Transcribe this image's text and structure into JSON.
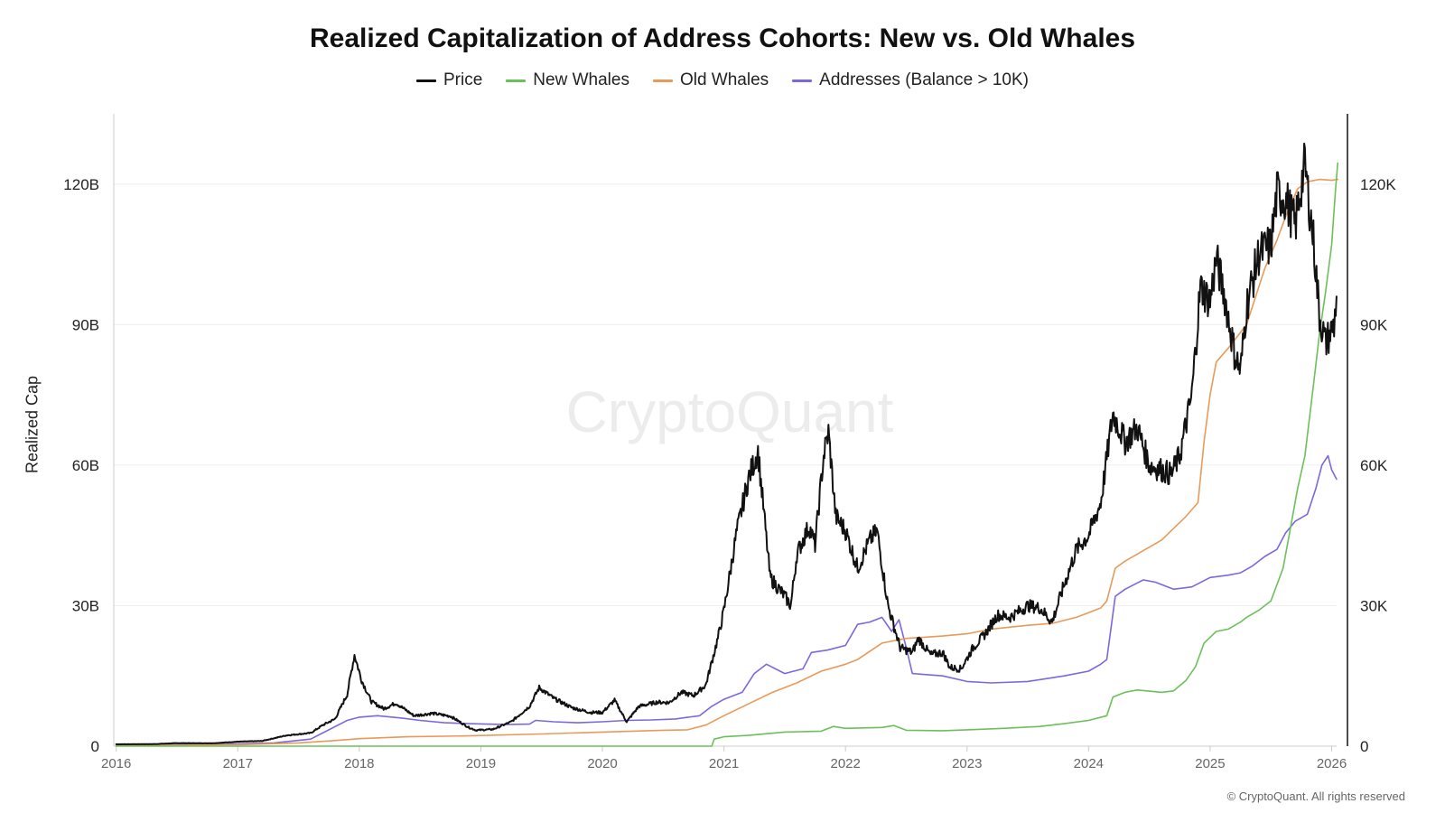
{
  "chart_data": {
    "type": "line",
    "title": "Realized Capitalization of Address Cohorts: New vs. Old Whales",
    "ylabel": "Realized Cap",
    "y2label": "",
    "watermark": "CryptoQuant",
    "copyright": "© CryptoQuant. All rights reserved",
    "ylim": [
      0,
      135
    ],
    "y2lim": [
      0,
      135000
    ],
    "y_ticks": [
      {
        "value": 0,
        "label": "0"
      },
      {
        "value": 30,
        "label": "30B"
      },
      {
        "value": 60,
        "label": "60B"
      },
      {
        "value": 90,
        "label": "90B"
      },
      {
        "value": 120,
        "label": "120B"
      }
    ],
    "y2_ticks": [
      {
        "value": 0,
        "label": "0"
      },
      {
        "value": 30000,
        "label": "30K"
      },
      {
        "value": 60000,
        "label": "60K"
      },
      {
        "value": 90000,
        "label": "90K"
      },
      {
        "value": 120000,
        "label": "120K"
      }
    ],
    "xlim": [
      2015.98,
      2026.13
    ],
    "x_ticks": [
      {
        "value": 2016,
        "label": "2016"
      },
      {
        "value": 2017,
        "label": "2017"
      },
      {
        "value": 2018,
        "label": "2018"
      },
      {
        "value": 2019,
        "label": "2019"
      },
      {
        "value": 2020,
        "label": "2020"
      },
      {
        "value": 2021,
        "label": "2021"
      },
      {
        "value": 2022,
        "label": "2022"
      },
      {
        "value": 2023,
        "label": "2023"
      },
      {
        "value": 2024,
        "label": "2024"
      },
      {
        "value": 2025,
        "label": "2025"
      },
      {
        "value": 2026,
        "label": "2026"
      }
    ],
    "series": [
      {
        "name": "Price",
        "color": "#111111",
        "axis": "right",
        "width": 2,
        "points": [
          [
            2016.0,
            400
          ],
          [
            2016.3,
            430
          ],
          [
            2016.5,
            650
          ],
          [
            2016.8,
            620
          ],
          [
            2017.0,
            960
          ],
          [
            2017.2,
            1100
          ],
          [
            2017.4,
            2300
          ],
          [
            2017.6,
            2800
          ],
          [
            2017.7,
            4500
          ],
          [
            2017.8,
            5800
          ],
          [
            2017.9,
            11000
          ],
          [
            2017.96,
            19500
          ],
          [
            2018.02,
            14000
          ],
          [
            2018.1,
            9500
          ],
          [
            2018.2,
            8000
          ],
          [
            2018.3,
            9200
          ],
          [
            2018.45,
            6500
          ],
          [
            2018.6,
            7000
          ],
          [
            2018.75,
            6400
          ],
          [
            2018.9,
            4000
          ],
          [
            2018.96,
            3400
          ],
          [
            2019.1,
            3600
          ],
          [
            2019.25,
            5200
          ],
          [
            2019.4,
            8500
          ],
          [
            2019.48,
            12500
          ],
          [
            2019.6,
            10200
          ],
          [
            2019.75,
            8200
          ],
          [
            2019.9,
            7200
          ],
          [
            2020.0,
            7200
          ],
          [
            2020.1,
            9800
          ],
          [
            2020.2,
            5200
          ],
          [
            2020.3,
            8500
          ],
          [
            2020.45,
            9400
          ],
          [
            2020.55,
            9300
          ],
          [
            2020.65,
            11500
          ],
          [
            2020.75,
            10800
          ],
          [
            2020.85,
            13000
          ],
          [
            2020.95,
            23000
          ],
          [
            2021.0,
            29000
          ],
          [
            2021.1,
            45000
          ],
          [
            2021.2,
            57000
          ],
          [
            2021.28,
            63000
          ],
          [
            2021.38,
            36000
          ],
          [
            2021.5,
            32000
          ],
          [
            2021.55,
            30000
          ],
          [
            2021.6,
            41000
          ],
          [
            2021.7,
            47000
          ],
          [
            2021.75,
            43000
          ],
          [
            2021.82,
            62000
          ],
          [
            2021.86,
            67000
          ],
          [
            2021.92,
            49000
          ],
          [
            2022.0,
            46000
          ],
          [
            2022.1,
            38000
          ],
          [
            2022.2,
            44000
          ],
          [
            2022.26,
            46000
          ],
          [
            2022.35,
            30000
          ],
          [
            2022.45,
            21000
          ],
          [
            2022.55,
            20000
          ],
          [
            2022.6,
            23000
          ],
          [
            2022.7,
            19500
          ],
          [
            2022.8,
            20000
          ],
          [
            2022.86,
            16800
          ],
          [
            2022.95,
            16500
          ],
          [
            2023.05,
            21000
          ],
          [
            2023.15,
            24000
          ],
          [
            2023.25,
            28000
          ],
          [
            2023.35,
            27500
          ],
          [
            2023.5,
            30000
          ],
          [
            2023.6,
            29500
          ],
          [
            2023.7,
            26500
          ],
          [
            2023.8,
            34500
          ],
          [
            2023.9,
            42000
          ],
          [
            2024.0,
            45000
          ],
          [
            2024.1,
            52000
          ],
          [
            2024.2,
            71000
          ],
          [
            2024.3,
            65000
          ],
          [
            2024.4,
            68000
          ],
          [
            2024.5,
            60000
          ],
          [
            2024.6,
            59000
          ],
          [
            2024.68,
            58000
          ],
          [
            2024.75,
            62000
          ],
          [
            2024.85,
            75000
          ],
          [
            2024.92,
            98000
          ],
          [
            2025.0,
            95000
          ],
          [
            2025.05,
            104000
          ],
          [
            2025.12,
            96000
          ],
          [
            2025.2,
            84000
          ],
          [
            2025.25,
            80000
          ],
          [
            2025.3,
            94000
          ],
          [
            2025.4,
            105000
          ],
          [
            2025.5,
            107000
          ],
          [
            2025.55,
            118000
          ],
          [
            2025.62,
            117000
          ],
          [
            2025.7,
            111000
          ],
          [
            2025.75,
            120000
          ],
          [
            2025.78,
            124000
          ],
          [
            2025.85,
            108000
          ],
          [
            2025.9,
            92000
          ],
          [
            2025.95,
            86000
          ],
          [
            2026.02,
            90000
          ],
          [
            2026.04,
            96000
          ]
        ]
      },
      {
        "name": "New Whales",
        "color": "#6cc05a",
        "axis": "left",
        "width": 1.6,
        "points": [
          [
            2016.0,
            0
          ],
          [
            2020.9,
            0
          ],
          [
            2020.92,
            1.5
          ],
          [
            2021.0,
            2.0
          ],
          [
            2021.2,
            2.3
          ],
          [
            2021.5,
            3.0
          ],
          [
            2021.8,
            3.2
          ],
          [
            2021.9,
            4.2
          ],
          [
            2022.0,
            3.8
          ],
          [
            2022.3,
            4.0
          ],
          [
            2022.4,
            4.4
          ],
          [
            2022.5,
            3.4
          ],
          [
            2022.8,
            3.3
          ],
          [
            2023.0,
            3.5
          ],
          [
            2023.3,
            3.8
          ],
          [
            2023.6,
            4.2
          ],
          [
            2023.8,
            4.8
          ],
          [
            2024.0,
            5.5
          ],
          [
            2024.15,
            6.5
          ],
          [
            2024.2,
            10.5
          ],
          [
            2024.3,
            11.5
          ],
          [
            2024.4,
            12.0
          ],
          [
            2024.6,
            11.5
          ],
          [
            2024.7,
            11.8
          ],
          [
            2024.8,
            14.0
          ],
          [
            2024.88,
            17.0
          ],
          [
            2024.95,
            22.0
          ],
          [
            2025.05,
            24.5
          ],
          [
            2025.15,
            25.0
          ],
          [
            2025.25,
            26.5
          ],
          [
            2025.3,
            27.5
          ],
          [
            2025.4,
            29.0
          ],
          [
            2025.5,
            31.0
          ],
          [
            2025.6,
            38.0
          ],
          [
            2025.65,
            45.0
          ],
          [
            2025.72,
            55.0
          ],
          [
            2025.78,
            62.0
          ],
          [
            2025.85,
            77.0
          ],
          [
            2025.9,
            88.0
          ],
          [
            2025.95,
            97.0
          ],
          [
            2026.0,
            107.0
          ],
          [
            2026.03,
            118.0
          ],
          [
            2026.05,
            124.5
          ]
        ]
      },
      {
        "name": "Old Whales",
        "color": "#e89a5a",
        "axis": "left",
        "width": 1.6,
        "points": [
          [
            2016.0,
            0.1
          ],
          [
            2017.0,
            0.3
          ],
          [
            2017.5,
            0.7
          ],
          [
            2017.8,
            1.2
          ],
          [
            2018.0,
            1.6
          ],
          [
            2018.4,
            2.0
          ],
          [
            2018.9,
            2.2
          ],
          [
            2019.5,
            2.6
          ],
          [
            2020.0,
            3.0
          ],
          [
            2020.5,
            3.4
          ],
          [
            2020.7,
            3.5
          ],
          [
            2020.85,
            4.5
          ],
          [
            2021.0,
            6.5
          ],
          [
            2021.2,
            9.0
          ],
          [
            2021.4,
            11.5
          ],
          [
            2021.6,
            13.5
          ],
          [
            2021.8,
            16.0
          ],
          [
            2022.0,
            17.5
          ],
          [
            2022.1,
            18.5
          ],
          [
            2022.3,
            22.0
          ],
          [
            2022.5,
            23.0
          ],
          [
            2022.8,
            23.5
          ],
          [
            2023.0,
            24.0
          ],
          [
            2023.2,
            25.0
          ],
          [
            2023.5,
            25.8
          ],
          [
            2023.7,
            26.2
          ],
          [
            2023.9,
            27.5
          ],
          [
            2024.0,
            28.5
          ],
          [
            2024.1,
            29.5
          ],
          [
            2024.15,
            31.0
          ],
          [
            2024.22,
            38.0
          ],
          [
            2024.3,
            39.5
          ],
          [
            2024.4,
            41.0
          ],
          [
            2024.6,
            44.0
          ],
          [
            2024.8,
            49.0
          ],
          [
            2024.9,
            52.0
          ],
          [
            2024.95,
            65.0
          ],
          [
            2025.0,
            75.0
          ],
          [
            2025.05,
            82.0
          ],
          [
            2025.15,
            85.0
          ],
          [
            2025.3,
            90.0
          ],
          [
            2025.45,
            102.0
          ],
          [
            2025.55,
            108.0
          ],
          [
            2025.62,
            113.0
          ],
          [
            2025.72,
            119.0
          ],
          [
            2025.8,
            120.5
          ],
          [
            2025.9,
            121.0
          ],
          [
            2026.0,
            120.8
          ],
          [
            2026.05,
            121.0
          ]
        ]
      },
      {
        "name": "Addresses (Balance > 10K)",
        "color": "#7b68e0",
        "axis": "left",
        "width": 1.6,
        "points": [
          [
            2016.0,
            0.3
          ],
          [
            2016.8,
            0.4
          ],
          [
            2017.3,
            0.7
          ],
          [
            2017.6,
            1.5
          ],
          [
            2017.75,
            3.5
          ],
          [
            2017.9,
            5.5
          ],
          [
            2018.0,
            6.2
          ],
          [
            2018.15,
            6.5
          ],
          [
            2018.35,
            6.0
          ],
          [
            2018.5,
            5.5
          ],
          [
            2018.7,
            5.0
          ],
          [
            2018.9,
            4.8
          ],
          [
            2019.2,
            4.6
          ],
          [
            2019.4,
            4.7
          ],
          [
            2019.45,
            5.5
          ],
          [
            2019.6,
            5.2
          ],
          [
            2019.8,
            5.0
          ],
          [
            2020.0,
            5.2
          ],
          [
            2020.2,
            5.5
          ],
          [
            2020.4,
            5.6
          ],
          [
            2020.6,
            5.8
          ],
          [
            2020.8,
            6.5
          ],
          [
            2020.9,
            8.5
          ],
          [
            2021.0,
            10.0
          ],
          [
            2021.15,
            11.5
          ],
          [
            2021.25,
            15.5
          ],
          [
            2021.35,
            17.5
          ],
          [
            2021.5,
            15.5
          ],
          [
            2021.65,
            16.5
          ],
          [
            2021.72,
            20.0
          ],
          [
            2021.85,
            20.5
          ],
          [
            2022.0,
            21.5
          ],
          [
            2022.1,
            26.0
          ],
          [
            2022.2,
            26.5
          ],
          [
            2022.3,
            27.5
          ],
          [
            2022.38,
            24.5
          ],
          [
            2022.44,
            27.0
          ],
          [
            2022.5,
            21.0
          ],
          [
            2022.55,
            15.5
          ],
          [
            2022.8,
            15.0
          ],
          [
            2023.0,
            13.8
          ],
          [
            2023.2,
            13.5
          ],
          [
            2023.5,
            13.8
          ],
          [
            2023.8,
            15.0
          ],
          [
            2024.0,
            16.0
          ],
          [
            2024.1,
            17.5
          ],
          [
            2024.15,
            18.5
          ],
          [
            2024.22,
            32.0
          ],
          [
            2024.3,
            33.5
          ],
          [
            2024.45,
            35.5
          ],
          [
            2024.55,
            35.0
          ],
          [
            2024.7,
            33.5
          ],
          [
            2024.85,
            34.0
          ],
          [
            2025.0,
            36.0
          ],
          [
            2025.15,
            36.5
          ],
          [
            2025.25,
            37.0
          ],
          [
            2025.35,
            38.5
          ],
          [
            2025.45,
            40.5
          ],
          [
            2025.55,
            42.0
          ],
          [
            2025.62,
            45.5
          ],
          [
            2025.7,
            48.0
          ],
          [
            2025.8,
            49.5
          ],
          [
            2025.87,
            55.0
          ],
          [
            2025.92,
            60.0
          ],
          [
            2025.97,
            62.0
          ],
          [
            2026.0,
            59.0
          ],
          [
            2026.04,
            57.0
          ]
        ]
      }
    ]
  }
}
